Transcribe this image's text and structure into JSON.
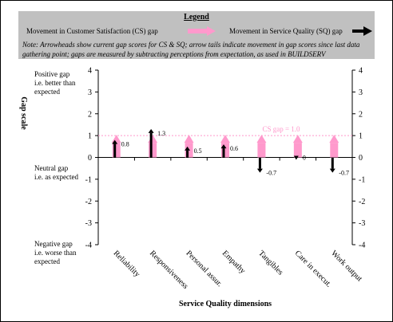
{
  "legend": {
    "title": "Legend",
    "cs_label": "Movement in Customer Satisfaction (CS) gap",
    "sq_label": "Movement in Service Quality (SQ) gap",
    "note": "Note: Arrowheads show current gap scores for CS & SQ; arrow tails indicate movement in gap scores since last data gathering point; gaps are measured by subtracting perceptions from expectation, as used in BUILDSERV"
  },
  "annotations": {
    "positive": [
      "Positive gap",
      "i.e. better than",
      "expected"
    ],
    "neutral": [
      "Neutral gap",
      "i.e. as expected"
    ],
    "negative": [
      "Negative gap",
      "i.e. worse than",
      "expected"
    ],
    "cs_gap_label": "CS gap = 1.0"
  },
  "chart_data": {
    "type": "bar",
    "title": "",
    "xlabel": "Service Quality dimensions",
    "ylabel": "Gap  scale",
    "ylim": [
      -4,
      4
    ],
    "yticks": [
      4,
      3,
      2,
      1,
      0,
      -1,
      -2,
      -3,
      -4
    ],
    "categories": [
      "Reliability",
      "Responsiveness",
      "Personal assur.",
      "Empathy",
      "Tangibles",
      "Care in execut.",
      "Work output"
    ],
    "series": [
      {
        "name": "Movement in Customer Satisfaction (CS) gap",
        "values": [
          1.0,
          1.0,
          1.0,
          1.0,
          1.0,
          1.0,
          1.0
        ],
        "color": "#ff99cc"
      },
      {
        "name": "Movement in Service Quality (SQ) gap",
        "values": [
          0.8,
          1.3,
          0.5,
          0.6,
          -0.7,
          0.0,
          -0.7
        ],
        "labels": [
          "0.8",
          "1.3",
          "0.5",
          "0.6",
          "-0.7",
          "0",
          "-0.7"
        ],
        "color": "#000000"
      }
    ],
    "reference_line": {
      "value": 1.0,
      "color": "#ff99cc"
    }
  }
}
